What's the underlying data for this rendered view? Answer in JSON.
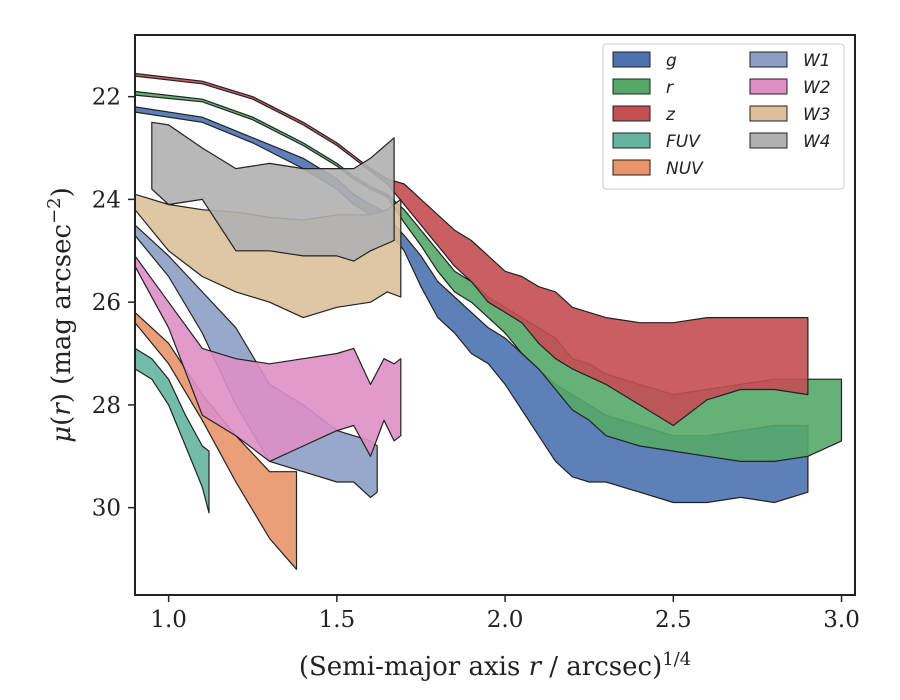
{
  "chart_data": {
    "type": "area",
    "xlabel": "(Semi-major axis r / arcsec)^{1/4}",
    "ylabel": "μ(r) (mag arcsec^{−2})",
    "xlim": [
      0.9,
      3.04
    ],
    "ylim": [
      31.7,
      20.8
    ],
    "y_inverted": true,
    "x_ticks": [
      1.0,
      1.5,
      2.0,
      2.5,
      3.0
    ],
    "x_tick_labels": [
      "1.0",
      "1.5",
      "2.0",
      "2.5",
      "3.0"
    ],
    "y_ticks": [
      22,
      24,
      26,
      28,
      30
    ],
    "y_tick_labels": [
      "22",
      "24",
      "26",
      "28",
      "30"
    ],
    "grid": false,
    "legend": {
      "placement": "top-right",
      "columns": 2
    },
    "series": [
      {
        "name": "g",
        "color": "#4c72b0",
        "x": [
          0.9,
          1.1,
          1.25,
          1.4,
          1.5,
          1.55,
          1.6,
          1.63,
          1.7,
          1.75,
          1.8,
          1.85,
          1.9,
          1.95,
          2.0,
          2.05,
          2.1,
          2.15,
          2.2,
          2.25,
          2.3,
          2.4,
          2.5,
          2.6,
          2.7,
          2.8,
          2.9
        ],
        "lo": [
          22.2,
          22.4,
          22.8,
          23.2,
          23.6,
          23.9,
          24.1,
          24.2,
          24.7,
          25.1,
          25.6,
          25.9,
          26.2,
          26.5,
          26.7,
          27.0,
          27.3,
          27.6,
          27.8,
          28.0,
          28.2,
          28.4,
          28.6,
          28.6,
          28.5,
          28.4,
          28.4
        ],
        "hi": [
          22.3,
          22.5,
          22.9,
          23.4,
          23.8,
          24.1,
          24.3,
          24.4,
          25.0,
          25.7,
          26.3,
          26.6,
          27.0,
          27.2,
          27.6,
          28.1,
          28.6,
          29.1,
          29.4,
          29.5,
          29.5,
          29.7,
          29.9,
          29.9,
          29.8,
          29.9,
          29.7
        ]
      },
      {
        "name": "r",
        "color": "#55a868",
        "x": [
          0.9,
          1.1,
          1.25,
          1.4,
          1.5,
          1.55,
          1.6,
          1.65,
          1.7,
          1.75,
          1.8,
          1.85,
          1.9,
          1.95,
          2.0,
          2.05,
          2.1,
          2.15,
          2.2,
          2.25,
          2.3,
          2.4,
          2.5,
          2.6,
          2.7,
          2.8,
          2.9,
          3.0
        ],
        "lo": [
          21.9,
          22.05,
          22.4,
          22.9,
          23.3,
          23.55,
          23.75,
          23.9,
          24.2,
          24.6,
          25.0,
          25.4,
          25.6,
          25.9,
          26.1,
          26.3,
          26.5,
          26.7,
          27.1,
          27.2,
          27.4,
          27.6,
          27.8,
          27.7,
          27.6,
          27.5,
          27.5,
          27.5
        ],
        "hi": [
          21.97,
          22.1,
          22.45,
          22.95,
          23.35,
          23.6,
          23.8,
          23.95,
          24.45,
          24.9,
          25.4,
          25.8,
          26.0,
          26.3,
          26.6,
          27.0,
          27.3,
          27.7,
          28.1,
          28.3,
          28.6,
          28.8,
          28.9,
          29.0,
          29.1,
          29.1,
          29.0,
          28.7
        ]
      },
      {
        "name": "z",
        "color": "#c44e52",
        "x": [
          0.9,
          1.1,
          1.25,
          1.4,
          1.5,
          1.55,
          1.6,
          1.65,
          1.7,
          1.75,
          1.8,
          1.85,
          1.9,
          1.95,
          2.0,
          2.05,
          2.1,
          2.15,
          2.2,
          2.3,
          2.4,
          2.5,
          2.6,
          2.7,
          2.8,
          2.9
        ],
        "lo": [
          21.55,
          21.7,
          22.0,
          22.5,
          22.9,
          23.15,
          23.4,
          23.6,
          23.7,
          24.0,
          24.3,
          24.6,
          24.8,
          25.1,
          25.4,
          25.5,
          25.7,
          25.8,
          26.1,
          26.3,
          26.4,
          26.4,
          26.3,
          26.3,
          26.3,
          26.3
        ],
        "hi": [
          21.6,
          21.75,
          22.05,
          22.55,
          22.95,
          23.2,
          23.45,
          23.7,
          24.1,
          24.5,
          24.9,
          25.3,
          25.6,
          26.0,
          26.2,
          26.4,
          26.8,
          27.1,
          27.3,
          27.6,
          28.0,
          28.4,
          27.9,
          27.7,
          27.7,
          27.8
        ]
      },
      {
        "name": "FUV",
        "color": "#64b5a0",
        "x": [
          0.9,
          0.95,
          1.0,
          1.05,
          1.1,
          1.12
        ],
        "lo": [
          26.9,
          27.1,
          27.5,
          28.2,
          28.8,
          28.9
        ],
        "hi": [
          27.3,
          27.5,
          28.0,
          28.8,
          29.6,
          30.1
        ]
      },
      {
        "name": "NUV",
        "color": "#e8956a",
        "x": [
          0.9,
          1.0,
          1.1,
          1.2,
          1.3,
          1.38
        ],
        "lo": [
          26.2,
          26.8,
          27.8,
          28.6,
          29.3,
          29.3
        ],
        "hi": [
          26.4,
          27.2,
          28.3,
          29.5,
          30.6,
          31.2
        ]
      },
      {
        "name": "W1",
        "color": "#8c9ec4",
        "x": [
          0.9,
          1.0,
          1.1,
          1.2,
          1.3,
          1.4,
          1.5,
          1.55,
          1.6,
          1.62
        ],
        "lo": [
          24.5,
          25.1,
          25.8,
          26.5,
          27.6,
          28.0,
          28.5,
          28.6,
          28.7,
          28.8
        ],
        "hi": [
          24.7,
          25.5,
          26.6,
          28.0,
          29.1,
          29.3,
          29.5,
          29.5,
          29.8,
          29.7
        ]
      },
      {
        "name": "W2",
        "color": "#dd8fc6",
        "x": [
          0.9,
          1.0,
          1.1,
          1.2,
          1.3,
          1.4,
          1.5,
          1.55,
          1.6,
          1.64,
          1.67,
          1.69
        ],
        "lo": [
          25.1,
          26.0,
          26.9,
          27.1,
          27.2,
          27.1,
          27.0,
          26.9,
          27.6,
          27.1,
          27.2,
          27.1
        ],
        "hi": [
          25.3,
          26.5,
          28.2,
          28.6,
          29.1,
          28.8,
          28.5,
          28.4,
          29.0,
          28.3,
          28.7,
          28.6
        ]
      },
      {
        "name": "W3",
        "color": "#dcc09a",
        "x": [
          0.9,
          1.0,
          1.1,
          1.2,
          1.3,
          1.4,
          1.5,
          1.6,
          1.65,
          1.69
        ],
        "lo": [
          23.9,
          24.1,
          24.2,
          24.25,
          24.35,
          24.4,
          24.3,
          24.3,
          24.2,
          24.0
        ],
        "hi": [
          24.2,
          25.0,
          25.5,
          25.8,
          26.0,
          26.3,
          26.1,
          26.0,
          25.8,
          25.9
        ]
      },
      {
        "name": "W4",
        "color": "#b0b0b0",
        "x": [
          0.95,
          1.0,
          1.1,
          1.2,
          1.3,
          1.4,
          1.5,
          1.55,
          1.6,
          1.67
        ],
        "lo": [
          22.5,
          22.55,
          23.0,
          23.4,
          23.3,
          23.4,
          23.4,
          23.4,
          23.2,
          22.8
        ],
        "hi": [
          23.8,
          24.1,
          24.0,
          25.0,
          25.0,
          25.1,
          25.1,
          25.2,
          25.0,
          24.8
        ]
      }
    ]
  }
}
